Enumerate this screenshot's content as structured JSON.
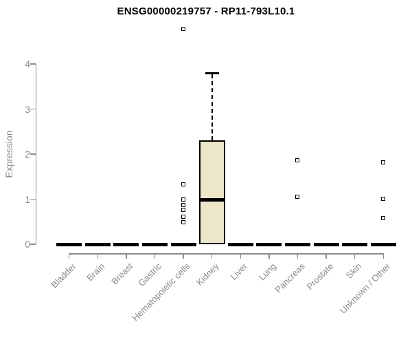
{
  "chart_data": {
    "type": "boxplot",
    "title": "ENSG00000219757 - RP11-793L10.1",
    "xlabel": "",
    "ylabel": "Expression",
    "ylim": [
      0,
      4
    ],
    "yticks": [
      0,
      1,
      2,
      3,
      4
    ],
    "grid": false,
    "legend": "none",
    "categories": [
      "Bladder",
      "Brain",
      "Breast",
      "Gastric",
      "Hematopoietic cells",
      "Kidney",
      "Liver",
      "Lung",
      "Pancreas",
      "Prostate",
      "Skin",
      "Unknown / Other"
    ],
    "boxes": [
      {
        "category": "Bladder",
        "whisker_low": 0,
        "q1": 0,
        "median": 0,
        "q3": 0,
        "whisker_high": 0,
        "outliers": []
      },
      {
        "category": "Brain",
        "whisker_low": 0,
        "q1": 0,
        "median": 0,
        "q3": 0,
        "whisker_high": 0,
        "outliers": []
      },
      {
        "category": "Breast",
        "whisker_low": 0,
        "q1": 0,
        "median": 0,
        "q3": 0,
        "whisker_high": 0,
        "outliers": []
      },
      {
        "category": "Gastric",
        "whisker_low": 0,
        "q1": 0,
        "median": 0,
        "q3": 0,
        "whisker_high": 0,
        "outliers": []
      },
      {
        "category": "Hematopoietic cells",
        "whisker_low": 0,
        "q1": 0,
        "median": 0,
        "q3": 0,
        "whisker_high": 0,
        "outliers": [
          4.78,
          1.33,
          0.99,
          0.87,
          0.76,
          0.61,
          0.49
        ]
      },
      {
        "category": "Kidney",
        "whisker_low": 0,
        "q1": 0,
        "median": 0.99,
        "q3": 2.31,
        "whisker_high": 3.8,
        "outliers": []
      },
      {
        "category": "Liver",
        "whisker_low": 0,
        "q1": 0,
        "median": 0,
        "q3": 0,
        "whisker_high": 0,
        "outliers": []
      },
      {
        "category": "Lung",
        "whisker_low": 0,
        "q1": 0,
        "median": 0,
        "q3": 0,
        "whisker_high": 0,
        "outliers": []
      },
      {
        "category": "Pancreas",
        "whisker_low": 0,
        "q1": 0,
        "median": 0,
        "q3": 0,
        "whisker_high": 0,
        "outliers": [
          1.86,
          1.05
        ]
      },
      {
        "category": "Prostate",
        "whisker_low": 0,
        "q1": 0,
        "median": 0,
        "q3": 0,
        "whisker_high": 0,
        "outliers": []
      },
      {
        "category": "Skin",
        "whisker_low": 0,
        "q1": 0,
        "median": 0,
        "q3": 0,
        "whisker_high": 0,
        "outliers": []
      },
      {
        "category": "Unknown / Other",
        "whisker_low": 0,
        "q1": 0,
        "median": 0,
        "q3": 0,
        "whisker_high": 0,
        "outliers": [
          1.82,
          1.01,
          0.58
        ]
      }
    ],
    "colors": {
      "box_fill": "#ece6ca",
      "box_border": "#000000",
      "median": "#000000",
      "outlier_border": "#000000",
      "axis": "#8a8a8a",
      "tick_label": "#8a8a8a",
      "title": "#000000",
      "background": "#ffffff"
    }
  }
}
